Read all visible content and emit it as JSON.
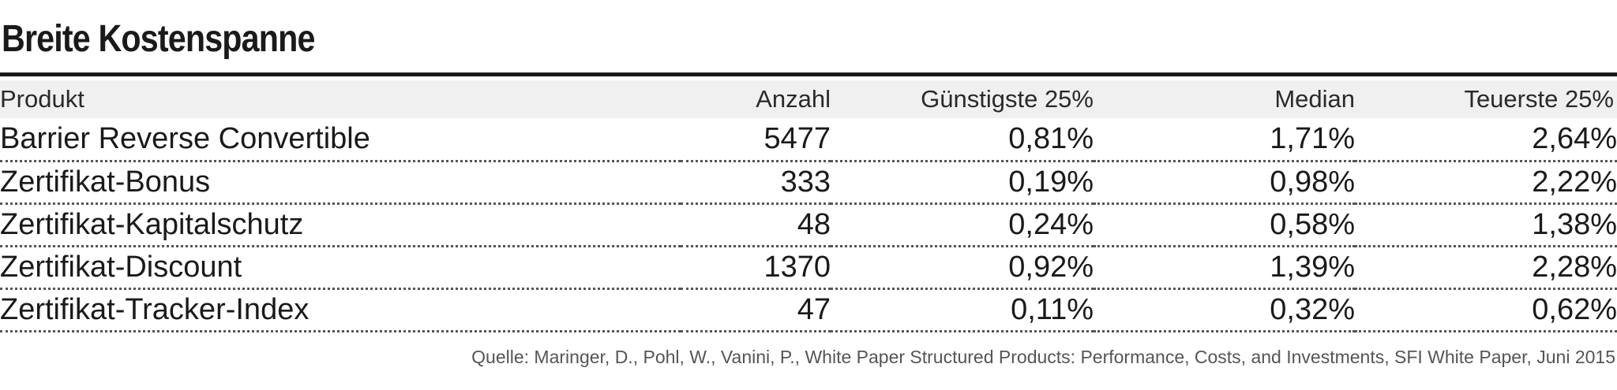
{
  "chart_data": {
    "type": "table",
    "title": "Breite Kostenspanne",
    "columns": [
      "Produkt",
      "Anzahl",
      "Günstigste 25%",
      "Median",
      "Teuerste 25%"
    ],
    "rows": [
      [
        "Barrier Reverse Convertible",
        "5477",
        "0,81%",
        "1,71%",
        "2,64%"
      ],
      [
        "Zertifikat-Bonus",
        "333",
        "0,19%",
        "0,98%",
        "2,22%"
      ],
      [
        "Zertifikat-Kapitalschutz",
        "48",
        "0,24%",
        "0,58%",
        "1,38%"
      ],
      [
        "Zertifikat-Discount",
        "1370",
        "0,92%",
        "1,39%",
        "2,28%"
      ],
      [
        "Zertifikat-Tracker-Index",
        "47",
        "0,11%",
        "0,32%",
        "0,62%"
      ]
    ],
    "source": "Quelle: Maringer, D., Pohl, W., Vanini, P., White Paper Structured Products: Performance, Costs, and Investments, SFI White Paper, Juni 2015"
  }
}
